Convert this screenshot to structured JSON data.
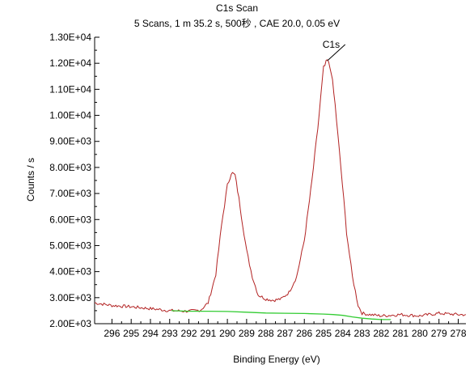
{
  "chart_data": {
    "type": "line",
    "title": "C1s Scan",
    "subtitle": "5 Scans,  1 m 35.2 s,  500秒 ,  CAE 20.0,  0.05 eV",
    "xlabel": "Binding Energy (eV)",
    "ylabel": "Counts / s",
    "xlim": [
      296.9,
      277.6
    ],
    "ylim": [
      2000,
      13000
    ],
    "x_reversed": true,
    "x_ticks": [
      296,
      295,
      294,
      293,
      292,
      291,
      290,
      289,
      288,
      287,
      286,
      285,
      284,
      283,
      282,
      281,
      280,
      279,
      278
    ],
    "y_ticks": [
      2000,
      3000,
      4000,
      5000,
      6000,
      7000,
      8000,
      9000,
      10000,
      11000,
      12000,
      13000
    ],
    "y_tick_labels": [
      "2.00E+03",
      "3.00E+03",
      "4.00E+03",
      "5.00E+03",
      "6.00E+03",
      "7.00E+03",
      "8.00E+03",
      "9.00E+03",
      "1.00E+04",
      "1.10E+04",
      "1.20E+04",
      "1.30E+04"
    ],
    "grid": false,
    "series": [
      {
        "role": "spectrum",
        "color": "#b22222",
        "x": [
          296.9,
          296.0,
          295.0,
          294.0,
          293.0,
          292.0,
          291.4,
          291.0,
          290.6,
          290.3,
          290.0,
          289.8,
          289.6,
          289.4,
          289.2,
          289.0,
          288.7,
          288.4,
          288.0,
          287.6,
          287.2,
          286.8,
          286.4,
          286.0,
          285.6,
          285.3,
          285.0,
          284.8,
          284.6,
          284.4,
          284.1,
          283.8,
          283.5,
          283.2,
          283.0,
          282.6,
          282.0,
          281.0,
          280.0,
          279.0,
          278.0,
          277.6
        ],
        "y": [
          2800,
          2700,
          2650,
          2580,
          2500,
          2480,
          2520,
          2800,
          3900,
          5800,
          7300,
          7800,
          7700,
          6800,
          5800,
          4800,
          3800,
          3100,
          2950,
          2900,
          2950,
          3200,
          3800,
          5200,
          7500,
          9500,
          11800,
          12100,
          11700,
          10400,
          8000,
          5500,
          3800,
          2700,
          2400,
          2350,
          2300,
          2350,
          2300,
          2400,
          2350,
          2350
        ]
      },
      {
        "role": "background",
        "color": "#33cc33",
        "x": [
          292.9,
          292.0,
          291.0,
          290.0,
          289.0,
          288.0,
          287.0,
          286.0,
          285.0,
          284.5,
          284.0,
          283.5,
          283.0,
          282.5,
          282.0,
          281.5
        ],
        "y": [
          2500,
          2480,
          2480,
          2470,
          2440,
          2410,
          2400,
          2390,
          2370,
          2350,
          2320,
          2260,
          2210,
          2180,
          2160,
          2160
        ]
      }
    ],
    "annotations": [
      {
        "text": "C1s",
        "x": 284.8,
        "y": 12100
      }
    ]
  }
}
